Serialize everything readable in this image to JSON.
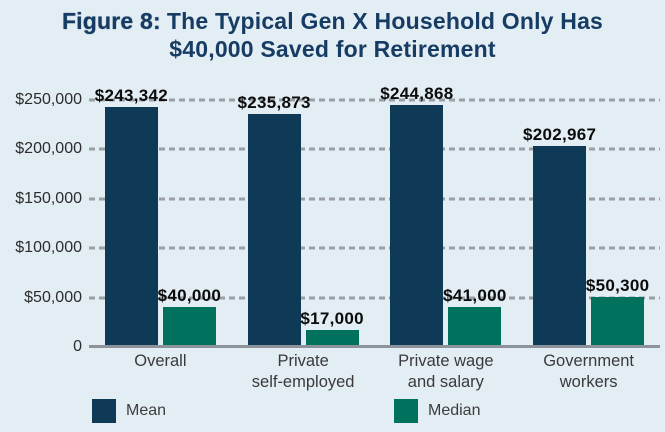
{
  "title": {
    "prefix": "Figure 8:",
    "rest": "The Typical Gen X Household Only Has $40,000 Saved for Retirement"
  },
  "colors": {
    "background": "#e2edf4",
    "mean": "#0e3a57",
    "median": "#00715d",
    "title": "#173c63",
    "gridline": "#9aa0a6",
    "baseline": "#8d939b",
    "axis_label": "#2d2d2d",
    "category_label": "#3a3a3a",
    "data_label": "#0c0c0c",
    "legend_label": "#3d3d3d"
  },
  "chart_data": {
    "type": "bar",
    "title": "Figure 8: The Typical Gen X Household Only Has $40,000 Saved for Retirement",
    "categories": [
      "Overall",
      "Private\nself-employed",
      "Private wage\nand salary",
      "Government\nworkers"
    ],
    "series": [
      {
        "name": "Mean",
        "color_key": "mean",
        "values": [
          243342,
          235873,
          244868,
          202967
        ],
        "labels": [
          "$243,342",
          "$235,873",
          "$244,868",
          "$202,967"
        ]
      },
      {
        "name": "Median",
        "color_key": "median",
        "values": [
          40000,
          17000,
          41000,
          50300
        ],
        "labels": [
          "$40,000",
          "$17,000",
          "$41,000",
          "$50,300"
        ]
      }
    ],
    "ylim": [
      0,
      250000
    ],
    "yticks": [
      {
        "value": 250000,
        "label": "$250,000"
      },
      {
        "value": 200000,
        "label": "$200,000"
      },
      {
        "value": 150000,
        "label": "$150,000"
      },
      {
        "value": 100000,
        "label": "$100,000"
      },
      {
        "value": 50000,
        "label": "$50,000"
      },
      {
        "value": 0,
        "label": "0"
      }
    ],
    "grid": "horizontal-dashed",
    "legend_position": "bottom"
  }
}
